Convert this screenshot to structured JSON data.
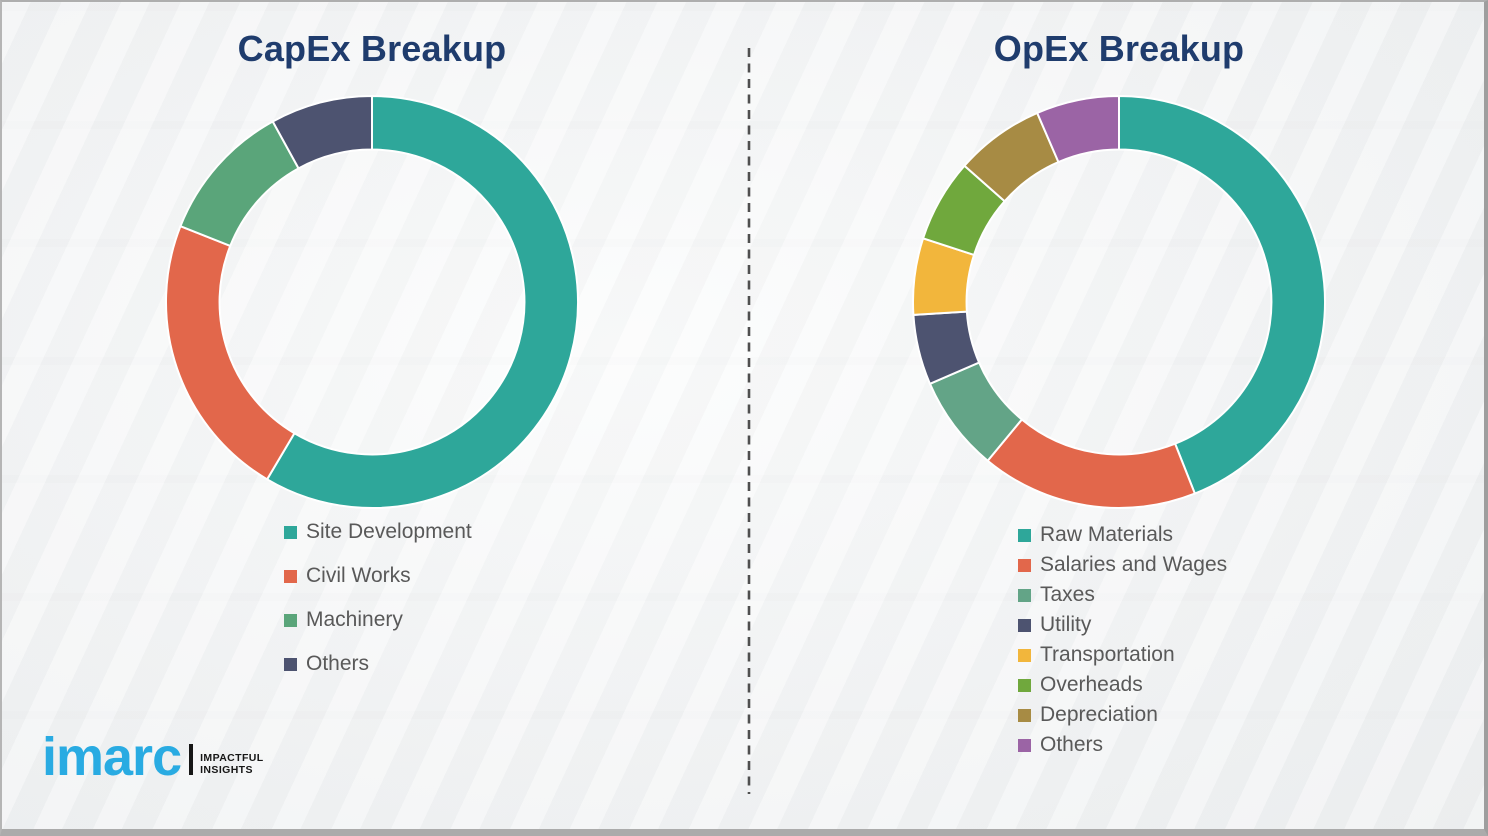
{
  "style": {
    "title_color": "#1f3c6d",
    "legend_text_color": "#595959",
    "background_color": "#f2f3f4",
    "divider_color": "#4f4f4f",
    "segment_gap_color": "#ffffff"
  },
  "branding": {
    "logo_text": "imarc",
    "logo_color": "#29abe2",
    "tagline_line1": "IMPACTFUL",
    "tagline_line2": "INSIGHTS"
  },
  "chart_data": [
    {
      "type": "pie",
      "subtype": "donut",
      "title": "CapEx Breakup",
      "categories": [
        "Site Development",
        "Civil Works",
        "Machinery",
        "Others"
      ],
      "values": [
        58.5,
        22.5,
        11,
        8
      ],
      "colors": [
        "#2ea79a",
        "#e2674b",
        "#5aa57a",
        "#4d5370"
      ],
      "start_angle_deg": 0,
      "direction": "clockwise",
      "inner_radius_ratio": 0.74,
      "legend_position": "bottom-left"
    },
    {
      "type": "pie",
      "subtype": "donut",
      "title": "OpEx Breakup",
      "categories": [
        "Raw Materials",
        "Salaries and Wages",
        "Taxes",
        "Utility",
        "Transportation",
        "Overheads",
        "Depreciation",
        "Others"
      ],
      "values": [
        44,
        17,
        7.5,
        5.5,
        6,
        6.5,
        7,
        6.5
      ],
      "colors": [
        "#2ea79a",
        "#e2674b",
        "#63a487",
        "#4d5370",
        "#f2b63c",
        "#70a83d",
        "#a78b44",
        "#9b64a5"
      ],
      "start_angle_deg": 0,
      "direction": "clockwise",
      "inner_radius_ratio": 0.74,
      "legend_position": "bottom-left"
    }
  ]
}
